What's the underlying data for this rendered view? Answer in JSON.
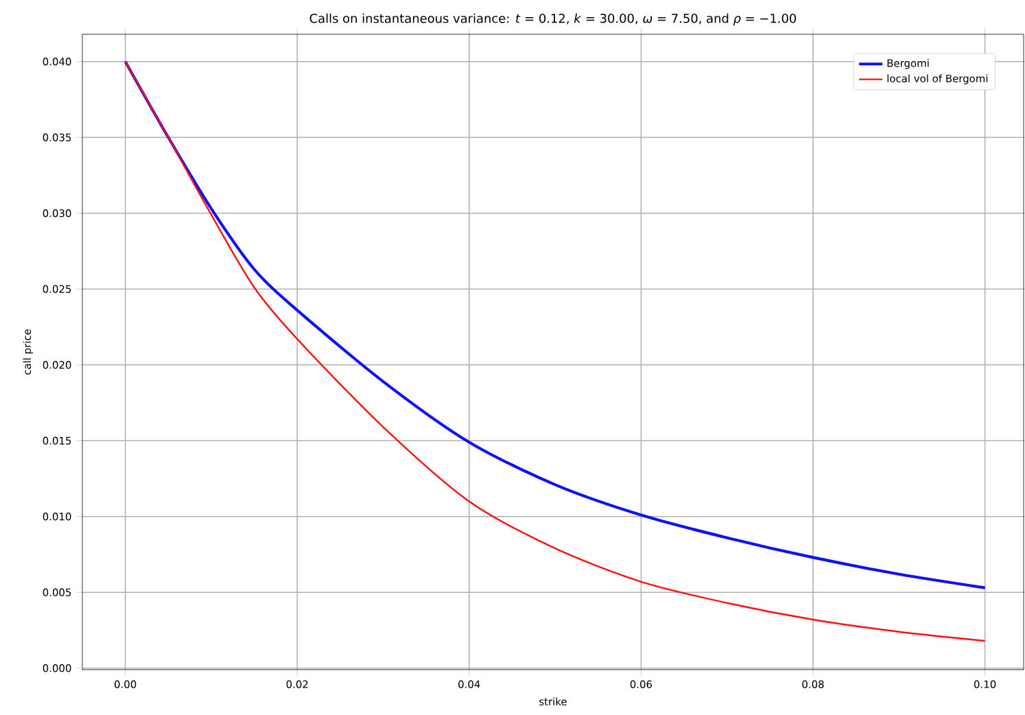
{
  "chart_data": {
    "type": "line",
    "title": "Calls on instantaneous variance: *t* = 0.12, *k* = 30.00, *ω* = 7.50, and *ρ* = −1.00",
    "xlabel": "strike",
    "ylabel": "call price",
    "x": [
      0.0,
      0.005,
      0.01,
      0.015,
      0.02,
      0.03,
      0.04,
      0.05,
      0.06,
      0.07,
      0.08,
      0.09,
      0.1
    ],
    "series": [
      {
        "name": "Bergomi",
        "color": "#1010ff",
        "values": [
          0.04,
          0.035,
          0.0303,
          0.0263,
          0.0236,
          0.0189,
          0.0149,
          0.0121,
          0.0101,
          0.0086,
          0.0073,
          0.0062,
          0.0053
        ]
      },
      {
        "name": "local vol of Bergomi",
        "color": "#ff1010",
        "values": [
          0.04,
          0.035,
          0.0299,
          0.0251,
          0.0217,
          0.0159,
          0.011,
          0.0079,
          0.0057,
          0.0043,
          0.0032,
          0.0024,
          0.0018
        ]
      }
    ],
    "xlim": [
      -0.005,
      0.1045
    ],
    "ylim": [
      -0.0001,
      0.0418
    ],
    "xticks": [
      {
        "value": 0.0,
        "label": "0.00"
      },
      {
        "value": 0.02,
        "label": "0.02"
      },
      {
        "value": 0.04,
        "label": "0.04"
      },
      {
        "value": 0.06,
        "label": "0.06"
      },
      {
        "value": 0.08,
        "label": "0.08"
      },
      {
        "value": 0.1,
        "label": "0.10"
      }
    ],
    "yticks": [
      {
        "value": 0.0,
        "label": "0.000"
      },
      {
        "value": 0.005,
        "label": "0.005"
      },
      {
        "value": 0.01,
        "label": "0.010"
      },
      {
        "value": 0.015,
        "label": "0.015"
      },
      {
        "value": 0.02,
        "label": "0.020"
      },
      {
        "value": 0.025,
        "label": "0.025"
      },
      {
        "value": 0.03,
        "label": "0.030"
      },
      {
        "value": 0.035,
        "label": "0.035"
      },
      {
        "value": 0.04,
        "label": "0.040"
      }
    ],
    "grid": true,
    "legend": "top right",
    "marker": "none",
    "line_style": "solid"
  }
}
